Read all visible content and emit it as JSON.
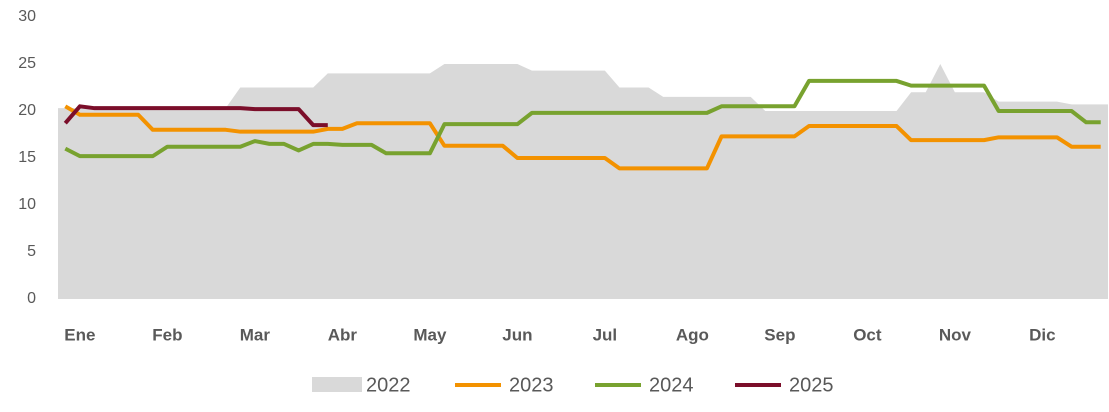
{
  "chart_data": {
    "type": "line",
    "categories": [
      null,
      "Ene",
      null,
      null,
      null,
      null,
      null,
      "Feb",
      null,
      null,
      null,
      null,
      null,
      "Mar",
      null,
      null,
      null,
      null,
      null,
      "Abr",
      null,
      null,
      null,
      null,
      null,
      "May",
      null,
      null,
      null,
      null,
      null,
      "Jun",
      null,
      null,
      null,
      null,
      null,
      "Jul",
      null,
      null,
      null,
      null,
      null,
      "Ago",
      null,
      null,
      null,
      null,
      null,
      "Sep",
      null,
      null,
      null,
      null,
      null,
      "Oct",
      null,
      null,
      null,
      null,
      null,
      "Nov",
      null,
      null,
      null,
      null,
      null,
      "Dic",
      null,
      null,
      null,
      null
    ],
    "ylim": [
      0,
      30
    ],
    "yticks": [
      0,
      5,
      10,
      15,
      20,
      25,
      30
    ],
    "series": [
      {
        "name": "2022",
        "color": "#d9d9d9",
        "style": "area",
        "values": [
          20.3,
          20.3,
          20.3,
          20.3,
          20.3,
          20.3,
          20.3,
          20.3,
          20.3,
          20.3,
          20.3,
          20.3,
          22.5,
          22.5,
          22.5,
          22.5,
          22.5,
          22.5,
          24,
          24,
          24,
          24,
          24,
          24,
          24,
          24,
          25,
          25,
          25,
          25,
          25,
          25,
          24.3,
          24.3,
          24.3,
          24.3,
          24.3,
          24.3,
          22.5,
          22.5,
          22.5,
          21.5,
          21.5,
          21.5,
          21.5,
          21.5,
          21.5,
          21.5,
          20,
          20,
          20,
          20,
          20,
          20,
          20,
          20,
          20,
          20,
          22,
          22,
          25,
          22,
          22,
          22,
          21,
          21,
          21,
          21,
          21,
          20.7,
          20.7,
          20.7
        ]
      },
      {
        "name": "2023",
        "color": "#f39200",
        "style": "line",
        "values": [
          20.5,
          19.6,
          19.6,
          19.6,
          19.6,
          19.6,
          18,
          18,
          18,
          18,
          18,
          18,
          17.8,
          17.8,
          17.8,
          17.8,
          17.8,
          17.8,
          18.1,
          18.1,
          18.7,
          18.7,
          18.7,
          18.7,
          18.7,
          18.7,
          16.3,
          16.3,
          16.3,
          16.3,
          16.3,
          15,
          15,
          15,
          15,
          15,
          15,
          15,
          13.9,
          13.9,
          13.9,
          13.9,
          13.9,
          13.9,
          13.9,
          17.3,
          17.3,
          17.3,
          17.3,
          17.3,
          17.3,
          18.4,
          18.4,
          18.4,
          18.4,
          18.4,
          18.4,
          18.4,
          16.9,
          16.9,
          16.9,
          16.9,
          16.9,
          16.9,
          17.2,
          17.2,
          17.2,
          17.2,
          17.2,
          16.2,
          16.2,
          16.2
        ]
      },
      {
        "name": "2024",
        "color": "#78a22f",
        "style": "line",
        "values": [
          16,
          15.2,
          15.2,
          15.2,
          15.2,
          15.2,
          15.2,
          16.2,
          16.2,
          16.2,
          16.2,
          16.2,
          16.2,
          16.8,
          16.5,
          16.5,
          15.8,
          16.5,
          16.5,
          16.4,
          16.4,
          16.4,
          15.5,
          15.5,
          15.5,
          15.5,
          18.6,
          18.6,
          18.6,
          18.6,
          18.6,
          18.6,
          19.8,
          19.8,
          19.8,
          19.8,
          19.8,
          19.8,
          19.8,
          19.8,
          19.8,
          19.8,
          19.8,
          19.8,
          19.8,
          20.5,
          20.5,
          20.5,
          20.5,
          20.5,
          20.5,
          23.2,
          23.2,
          23.2,
          23.2,
          23.2,
          23.2,
          23.2,
          22.7,
          22.7,
          22.7,
          22.7,
          22.7,
          22.7,
          20,
          20,
          20,
          20,
          20,
          20,
          18.8,
          18.8
        ]
      },
      {
        "name": "2025",
        "color": "#7b0e2a",
        "style": "line",
        "values": [
          18.7,
          20.5,
          20.3,
          20.3,
          20.3,
          20.3,
          20.3,
          20.3,
          20.3,
          20.3,
          20.3,
          20.3,
          20.3,
          20.2,
          20.2,
          20.2,
          20.2,
          18.5,
          18.5,
          null,
          null,
          null,
          null,
          null,
          null,
          null,
          null,
          null,
          null,
          null,
          null,
          null,
          null,
          null,
          null,
          null,
          null,
          null,
          null,
          null,
          null,
          null,
          null,
          null,
          null,
          null,
          null,
          null,
          null,
          null,
          null,
          null,
          null,
          null,
          null,
          null,
          null,
          null,
          null,
          null,
          null,
          null,
          null,
          null,
          null,
          null,
          null,
          null,
          null,
          null,
          null,
          null
        ]
      }
    ]
  }
}
